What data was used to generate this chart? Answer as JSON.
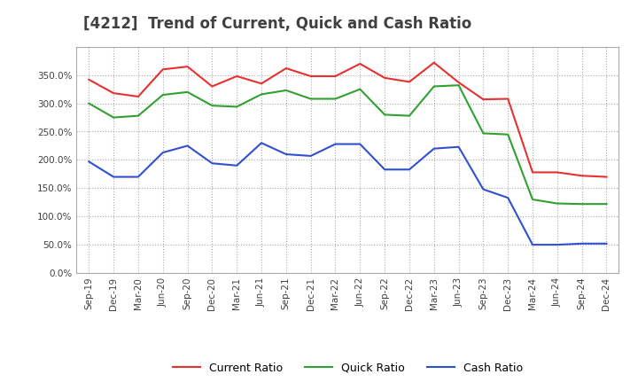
{
  "title": "[4212]  Trend of Current, Quick and Cash Ratio",
  "title_color": "#404040",
  "background_color": "#ffffff",
  "grid_color": "#aaaaaa",
  "xlabels": [
    "Sep-19",
    "Dec-19",
    "Mar-20",
    "Jun-20",
    "Sep-20",
    "Dec-20",
    "Mar-21",
    "Jun-21",
    "Sep-21",
    "Dec-21",
    "Mar-22",
    "Jun-22",
    "Sep-22",
    "Dec-22",
    "Mar-23",
    "Jun-23",
    "Sep-23",
    "Dec-23",
    "Mar-24",
    "Jun-24",
    "Sep-24",
    "Dec-24"
  ],
  "current_ratio": [
    342,
    318,
    312,
    360,
    365,
    330,
    348,
    335,
    362,
    348,
    348,
    370,
    345,
    338,
    372,
    337,
    307,
    308,
    178,
    178,
    172,
    170
  ],
  "quick_ratio": [
    300,
    275,
    278,
    315,
    320,
    296,
    294,
    316,
    323,
    308,
    308,
    325,
    280,
    278,
    330,
    332,
    247,
    245,
    130,
    123,
    122,
    122
  ],
  "cash_ratio": [
    197,
    170,
    170,
    213,
    225,
    194,
    190,
    230,
    210,
    207,
    228,
    228,
    183,
    183,
    220,
    223,
    148,
    133,
    50,
    50,
    52,
    52
  ],
  "current_color": "#e83030",
  "quick_color": "#30a030",
  "cash_color": "#3050d0",
  "ylim": [
    0,
    400
  ],
  "yticks": [
    0,
    50,
    100,
    150,
    200,
    250,
    300,
    350
  ],
  "legend_labels": [
    "Current Ratio",
    "Quick Ratio",
    "Cash Ratio"
  ],
  "figsize": [
    7.2,
    4.4
  ],
  "dpi": 100
}
